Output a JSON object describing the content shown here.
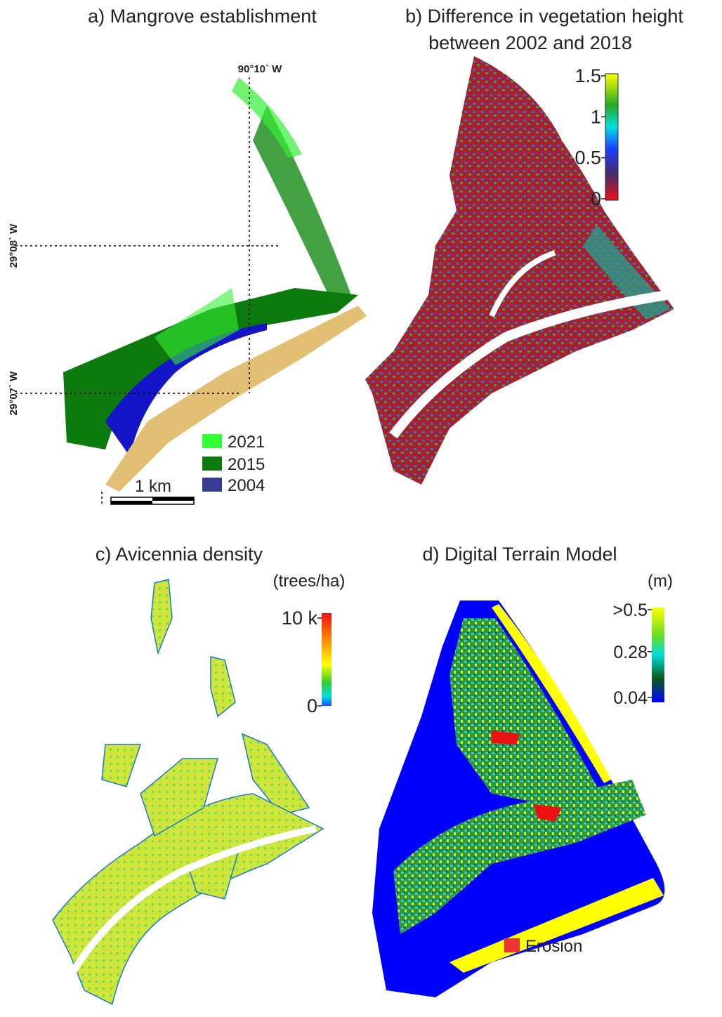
{
  "panels": [
    {
      "title": "a) Mangrove establishment",
      "longitude_label": "90°10` W",
      "latitude_labels": [
        "29°08` W",
        "29°07` W"
      ],
      "legend": [
        "2021",
        "2015",
        "2004"
      ],
      "scale_bar": "1 km"
    },
    {
      "title_lines": [
        "b) Difference in vegetation height",
        "between 2002 and 2018"
      ],
      "colorbar": {
        "ticks": [
          1.5,
          1,
          0.5,
          0
        ],
        "range": [
          0,
          1.5
        ]
      }
    },
    {
      "title": "c) Avicennia density",
      "colorbar": {
        "unit": "(trees/ha)",
        "ticks": [
          {
            "value": 10000,
            "label": "10 k"
          },
          0
        ],
        "range": [
          0,
          10000
        ]
      }
    },
    {
      "title": "d) Digital Terrain Model",
      "colorbar": {
        "unit": "(m)",
        "ticks": [
          {
            "value": 0.5,
            "label": ">0.5"
          },
          0.28,
          0.04
        ],
        "range": [
          0.04,
          0.5
        ]
      },
      "legend": [
        "Erosion"
      ]
    }
  ]
}
